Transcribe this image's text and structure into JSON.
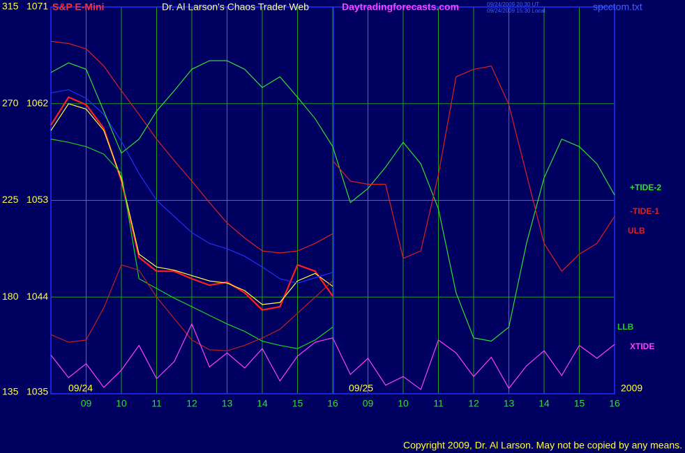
{
  "chart_data": {
    "type": "line",
    "subtitle": "S&P E-Mini",
    "title": "Dr. Al Larson's Chaos Trader Web",
    "site": "Daytradingforecasts.com",
    "timestamps": [
      "09/24/2009 20:30 UT",
      "09/24/2009 15:30 Local"
    ],
    "file": "spcctom.txt",
    "copyright": "Copyright 2009, Dr. Al Larson. May not be copied by any means.",
    "date_labels": [
      "09/24",
      "09/25"
    ],
    "year": "2009",
    "grid": true,
    "xlim": [
      0,
      16
    ],
    "xticks": [
      {
        "value": 1,
        "label": "09"
      },
      {
        "value": 2,
        "label": "10"
      },
      {
        "value": 3,
        "label": "11"
      },
      {
        "value": 4,
        "label": "12"
      },
      {
        "value": 5,
        "label": "13"
      },
      {
        "value": 6,
        "label": "14"
      },
      {
        "value": 7,
        "label": "15"
      },
      {
        "value": 8,
        "label": "16"
      },
      {
        "value": 9,
        "label": "09"
      },
      {
        "value": 10,
        "label": "10"
      },
      {
        "value": 11,
        "label": "11"
      },
      {
        "value": 12,
        "label": "12"
      },
      {
        "value": 13,
        "label": "13"
      },
      {
        "value": 14,
        "label": "14"
      },
      {
        "value": 15,
        "label": "15"
      },
      {
        "value": 16,
        "label": "16"
      }
    ],
    "ylim": [
      1035,
      1071
    ],
    "yticks": [
      1035,
      1044,
      1053,
      1062,
      1071
    ],
    "y2lim": [
      135,
      315
    ],
    "y2ticks": [
      135,
      180,
      225,
      270,
      315
    ],
    "x": [
      0,
      0.5,
      1,
      1.5,
      2,
      2.5,
      3,
      3.5,
      4,
      4.5,
      5,
      5.5,
      6,
      6.5,
      7,
      7.5,
      8,
      8.5,
      9,
      9.5,
      10,
      10.5,
      11,
      11.5,
      12,
      12.5,
      13,
      13.5,
      14,
      14.5,
      15,
      15.5,
      16
    ],
    "series": [
      {
        "color": "#ff2020",
        "values": [
          1060.0,
          1062.6,
          1061.9,
          1059.7,
          1054.8,
          1047.7,
          1046.4,
          1046.4,
          1045.7,
          1045.1,
          1045.4,
          1044.4,
          1042.8,
          1043.1,
          1047.0,
          1046.4,
          1044.1,
          null,
          null,
          null,
          null,
          null,
          null,
          null,
          null,
          null,
          null,
          null,
          null,
          null,
          null,
          null,
          null
        ]
      },
      {
        "color": "#ffff40",
        "values": [
          1059.5,
          1062,
          1061.5,
          1059.5,
          1055,
          1048,
          1046.8,
          1046.5,
          1046,
          1045.5,
          1045.3,
          1044.6,
          1043.3,
          1043.5,
          1045.5,
          1046.2,
          1045.0,
          null,
          null,
          null,
          null,
          null,
          null,
          null,
          null,
          null,
          null,
          null,
          null,
          null,
          null,
          null,
          null
        ]
      },
      {
        "color": "#2030ff",
        "values": [
          1063,
          1063.3,
          1062.5,
          1061,
          1058.5,
          1055.5,
          1053,
          1051.5,
          1050,
          1049,
          1048.5,
          1047.8,
          1046.8,
          1045.7,
          1045.3,
          1045.8,
          1046.3,
          null,
          null,
          null,
          null,
          null,
          null,
          null,
          null,
          null,
          null,
          null,
          null,
          null,
          null,
          null,
          null
        ]
      },
      {
        "name": "ULB",
        "color": "#e02020",
        "values": [
          1067.8,
          1067.6,
          1067.1,
          1065.5,
          1063.2,
          1061,
          1058.7,
          1056.7,
          1054.8,
          1052.8,
          1050.9,
          1049.5,
          1048.3,
          1048.1,
          1048.3,
          1049,
          1049.9,
          null,
          null,
          null,
          null,
          null,
          null,
          null,
          null,
          null,
          null,
          null,
          null,
          null,
          null,
          null,
          null
        ]
      },
      {
        "name": "LLB",
        "color": "#20d020",
        "values": [
          1058.7,
          1058.4,
          1058.0,
          1057.3,
          1055.5,
          1045.7,
          1044.8,
          1043.9,
          1043.1,
          1042.3,
          1041.5,
          1040.8,
          1039.9,
          1039.5,
          1039.2,
          1040,
          1041.2,
          null,
          null,
          null,
          null,
          null,
          null,
          null,
          null,
          null,
          null,
          null,
          null,
          null,
          null,
          null,
          null
        ]
      },
      {
        "color": "#c02020",
        "values": [
          1040.5,
          1039.8,
          1040,
          1043,
          1047,
          1046.5,
          1044,
          1042,
          1040,
          1039.1,
          1039,
          1039.5,
          1040.2,
          1041,
          1042.5,
          1044,
          1045.5,
          null,
          null,
          null,
          null,
          null,
          null,
          null,
          null,
          null,
          null,
          null,
          null,
          null,
          null,
          null,
          null
        ]
      },
      {
        "name": "+TIDE-2",
        "color": "#30e030",
        "values": [
          1064.9,
          1065.8,
          1065.2,
          1061.3,
          1057.4,
          1058.7,
          1061.3,
          1063.2,
          1065.2,
          1066.0,
          1066.0,
          1065.2,
          1063.5,
          1064.5,
          1062.6,
          1060.6,
          1058.0,
          1052.8,
          1054.1,
          1056.1,
          1058.4,
          1056.4,
          1052.2,
          1044.4,
          1040.2,
          1039.9,
          1041.2,
          1049.0,
          1055.1,
          1058.7,
          1058.0,
          1056.4,
          1053.5
        ]
      },
      {
        "name": "-TIDE-1",
        "color": "#e02020",
        "values": [
          null,
          null,
          null,
          null,
          null,
          null,
          null,
          null,
          null,
          null,
          null,
          null,
          null,
          null,
          null,
          null,
          1056.7,
          1054.8,
          1054.5,
          1054.5,
          1047.6,
          1048.3,
          1055.4,
          1064.5,
          1065.2,
          1065.5,
          1061.9,
          1055.4,
          1049.0,
          1046.4,
          1048.0,
          1049.0,
          1051.5
        ]
      },
      {
        "name": "XTIDE",
        "color": "#ff40ff",
        "values": [
          1038.6,
          1036.5,
          1037.8,
          1035.6,
          1037.2,
          1039.5,
          1036.4,
          1038.0,
          1041.5,
          1037.5,
          1038.8,
          1037.4,
          1039.2,
          1036.2,
          1038.5,
          1039.8,
          1040.2,
          1036.8,
          1038.3,
          1035.8,
          1036.6,
          1035.4,
          1040.0,
          1038.8,
          1036.6,
          1038.4,
          1035.5,
          1037.6,
          1039.0,
          1036.7,
          1039.5,
          1038.3,
          1039.6
        ]
      }
    ]
  }
}
